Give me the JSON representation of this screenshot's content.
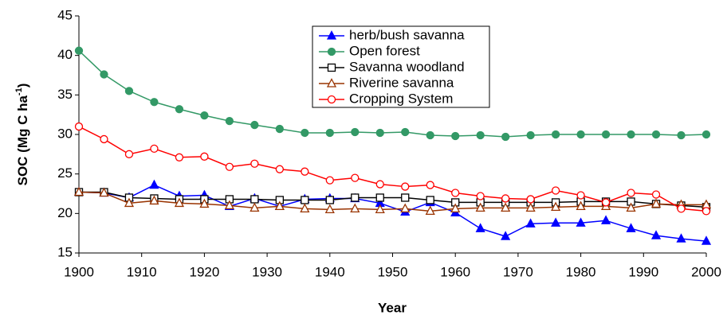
{
  "chart_data": {
    "type": "line",
    "xlabel": "Year",
    "ylabel": [
      "SOC (Mg C ha",
      "-1",
      ")"
    ],
    "x": [
      1900,
      1904,
      1908,
      1912,
      1916,
      1920,
      1924,
      1928,
      1932,
      1936,
      1940,
      1944,
      1948,
      1952,
      1956,
      1960,
      1964,
      1968,
      1972,
      1976,
      1980,
      1984,
      1988,
      1992,
      1996,
      2000
    ],
    "xlim": [
      1900,
      2000
    ],
    "xticks": [
      1900,
      1910,
      1920,
      1930,
      1940,
      1950,
      1960,
      1970,
      1980,
      1990,
      2000
    ],
    "ylim": [
      15,
      45
    ],
    "yticks": [
      15,
      20,
      25,
      30,
      35,
      40,
      45
    ],
    "grid": false,
    "legend": "top",
    "series": [
      {
        "name": "herb/bush savanna",
        "color": "#0000ff",
        "marker": "triangle",
        "filled": true,
        "values": [
          22.7,
          22.6,
          22.0,
          23.6,
          22.2,
          22.3,
          20.9,
          21.9,
          20.9,
          21.8,
          21.9,
          21.9,
          21.3,
          20.2,
          21.4,
          20.1,
          18.1,
          17.1,
          18.7,
          18.8,
          18.8,
          19.1,
          18.1,
          17.2,
          16.8,
          16.5
        ]
      },
      {
        "name": "Open forest",
        "color": "#339966",
        "marker": "circle",
        "filled": true,
        "values": [
          40.6,
          37.6,
          35.5,
          34.1,
          33.2,
          32.4,
          31.7,
          31.2,
          30.7,
          30.2,
          30.2,
          30.3,
          30.2,
          30.3,
          29.9,
          29.8,
          29.9,
          29.7,
          29.9,
          30.0,
          30.0,
          30.0,
          30.0,
          30.0,
          29.9,
          30.0
        ]
      },
      {
        "name": "Savanna woodland",
        "color": "#000000",
        "marker": "square",
        "filled": false,
        "values": [
          22.7,
          22.7,
          22.0,
          21.9,
          21.8,
          21.8,
          21.8,
          21.8,
          21.7,
          21.7,
          21.7,
          22.0,
          22.0,
          22.0,
          21.7,
          21.4,
          21.4,
          21.4,
          21.4,
          21.4,
          21.5,
          21.5,
          21.5,
          21.2,
          21.0,
          20.8
        ]
      },
      {
        "name": "Riverine savanna",
        "color": "#993300",
        "marker": "triangle",
        "filled": false,
        "values": [
          22.7,
          22.6,
          21.3,
          21.6,
          21.3,
          21.2,
          21.0,
          20.7,
          20.9,
          20.6,
          20.5,
          20.6,
          20.5,
          20.6,
          20.3,
          20.6,
          20.7,
          20.7,
          20.7,
          20.8,
          20.9,
          20.9,
          20.7,
          21.2,
          21.1,
          21.1
        ]
      },
      {
        "name": "Cropping System",
        "color": "#ff0000",
        "marker": "circle",
        "filled": false,
        "values": [
          31.0,
          29.4,
          27.5,
          28.2,
          27.1,
          27.2,
          25.9,
          26.3,
          25.6,
          25.3,
          24.2,
          24.5,
          23.7,
          23.4,
          23.6,
          22.6,
          22.2,
          21.9,
          21.8,
          22.9,
          22.3,
          21.4,
          22.6,
          22.4,
          20.6,
          20.3
        ]
      }
    ]
  }
}
